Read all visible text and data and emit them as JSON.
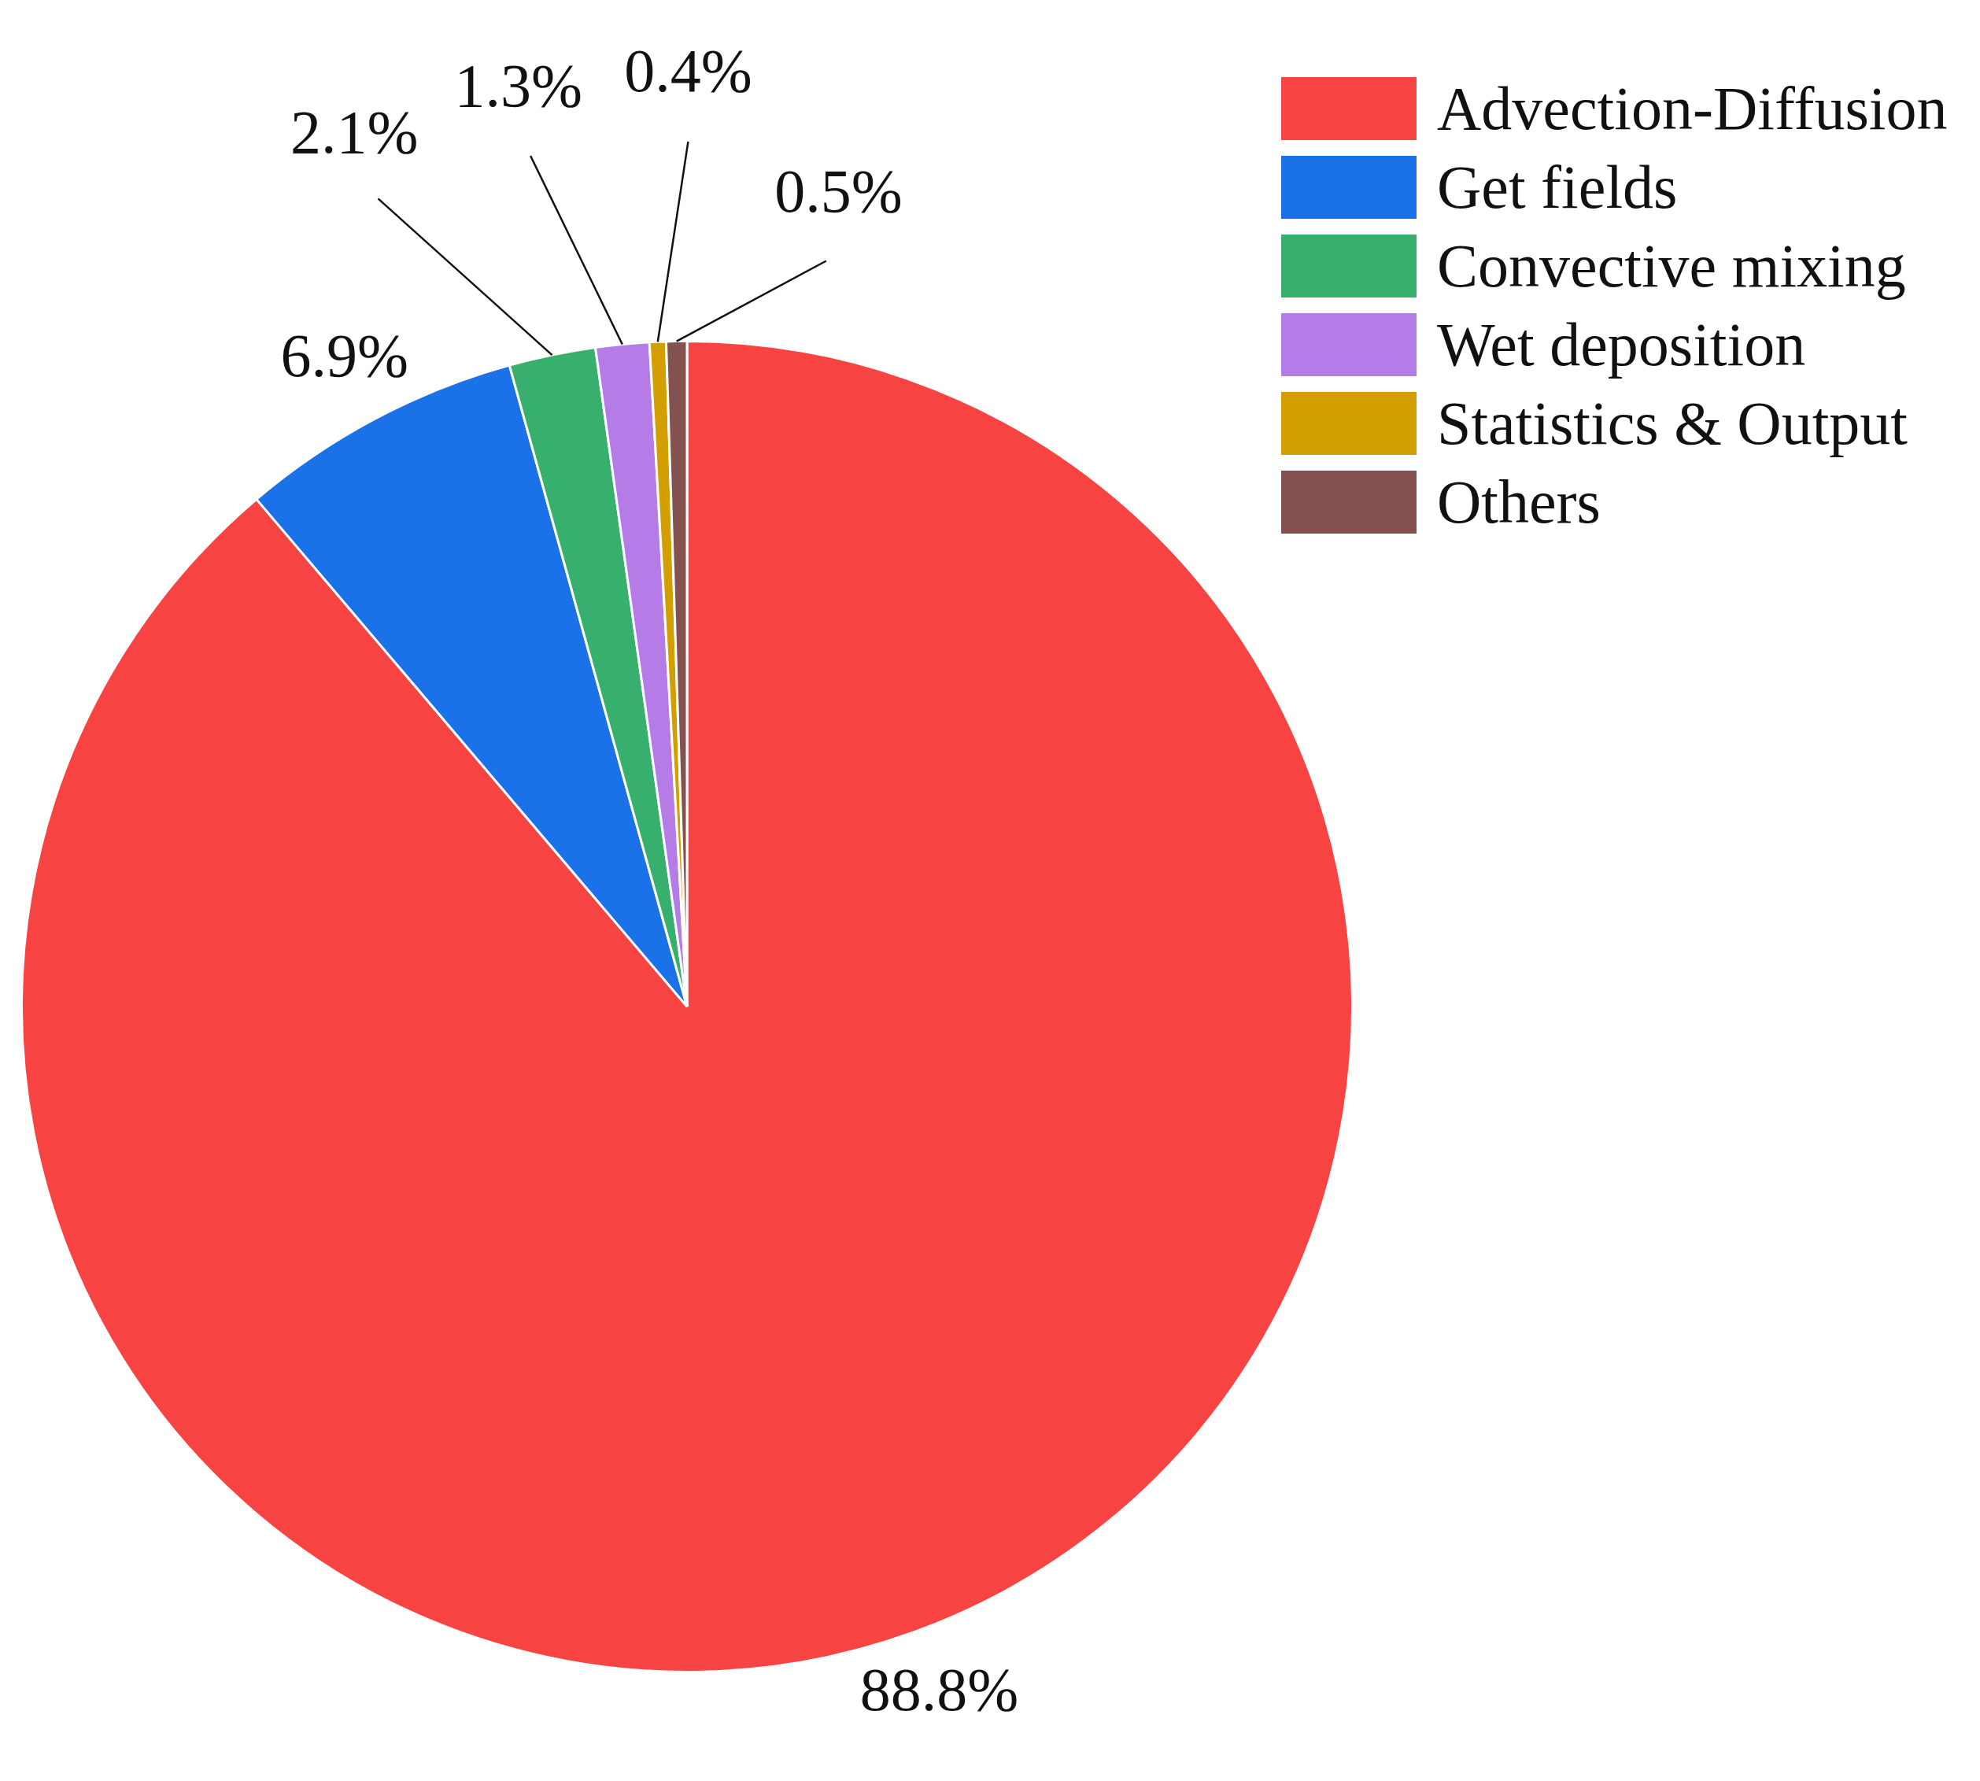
{
  "chart_data": {
    "type": "pie",
    "categories": [
      "Advection-Diffusion",
      "Get fields",
      "Convective mixing",
      "Wet deposition",
      "Statistics & Output",
      "Others"
    ],
    "values": [
      88.8,
      6.9,
      2.1,
      1.3,
      0.4,
      0.5
    ],
    "colors": [
      "#f84343",
      "#1b72e8",
      "#37b06d",
      "#b57be6",
      "#d29e00",
      "#845151"
    ],
    "value_labels": [
      "88.8%",
      "6.9%",
      "2.1%",
      "1.3%",
      "0.4%",
      "0.5%"
    ],
    "legend": "top right"
  }
}
